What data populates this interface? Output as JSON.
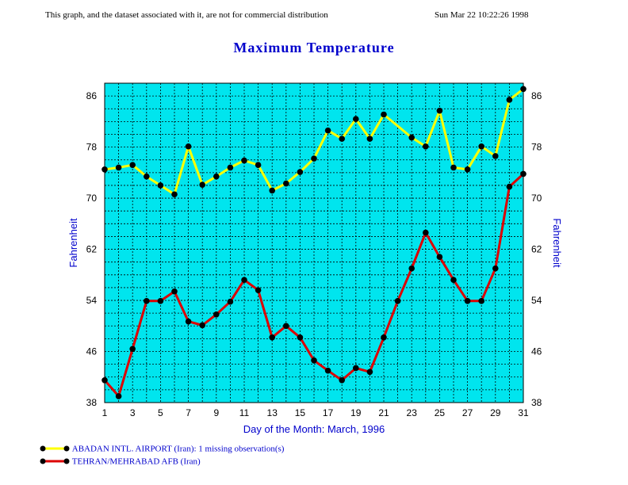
{
  "header": {
    "notice": "This graph, and the dataset associated with it, are not for commercial distribution",
    "timestamp": "Sun Mar 22 10:22:26 1998"
  },
  "colors": {
    "plot_background": "#00e5ee",
    "series_a": "#ffff00",
    "series_b": "#dd0000",
    "marker": "#000000",
    "text_blue": "#0000cc"
  },
  "chart_data": {
    "type": "line",
    "title": "Maximum Temperature",
    "xlabel": "Day of the Month:  March, 1996",
    "ylabel_left": "Fahrenheit",
    "ylabel_right": "Fahrenheit",
    "xlim": [
      1,
      31
    ],
    "ylim": [
      38,
      88
    ],
    "x_ticks": [
      1,
      3,
      5,
      7,
      9,
      11,
      13,
      15,
      17,
      19,
      21,
      23,
      25,
      27,
      29,
      31
    ],
    "y_ticks": [
      38,
      46,
      54,
      62,
      70,
      78,
      86
    ],
    "grid": true,
    "series": [
      {
        "name": "ABADAN INTL. AIRPORT (Iran):  1 missing observation(s)",
        "x": [
          1,
          2,
          3,
          4,
          5,
          6,
          7,
          8,
          9,
          10,
          11,
          12,
          13,
          14,
          15,
          16,
          17,
          18,
          19,
          20,
          21,
          23,
          24,
          25,
          26,
          27,
          28,
          29,
          30,
          31
        ],
        "values": [
          74.5,
          74.8,
          75.2,
          73.4,
          72.0,
          70.6,
          78.1,
          72.1,
          73.4,
          74.8,
          75.9,
          75.2,
          71.2,
          72.3,
          74.1,
          76.2,
          80.6,
          79.3,
          82.4,
          79.3,
          83.1,
          79.5,
          78.1,
          83.7,
          74.8,
          74.5,
          78.1,
          76.6,
          85.4,
          87.1
        ]
      },
      {
        "name": "TEHRAN/MEHRABAD AFB (Iran)",
        "x": [
          1,
          2,
          3,
          4,
          5,
          6,
          7,
          8,
          9,
          10,
          11,
          12,
          13,
          14,
          15,
          16,
          17,
          18,
          19,
          20,
          21,
          22,
          23,
          24,
          25,
          26,
          27,
          28,
          29,
          30,
          31
        ],
        "values": [
          41.5,
          39.0,
          46.4,
          53.9,
          53.9,
          55.4,
          50.7,
          50.1,
          51.8,
          53.8,
          57.2,
          55.6,
          48.2,
          50.0,
          48.2,
          44.6,
          43.0,
          41.5,
          43.4,
          42.8,
          48.2,
          53.9,
          59.0,
          64.6,
          60.8,
          57.2,
          53.9,
          53.9,
          59.0,
          71.8,
          73.8
        ]
      }
    ]
  }
}
